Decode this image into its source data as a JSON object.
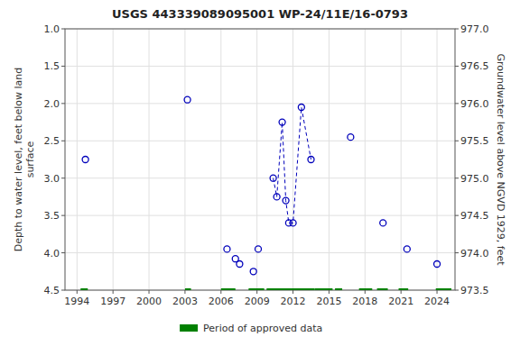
{
  "chart_data": {
    "type": "scatter",
    "title": "USGS 443339089095001 WP-24/11E/16-0793",
    "ylabel": "Depth to water level, feet below land\nsurface",
    "y2label": "Groundwater level above NGVD 1929, feet",
    "xlim": [
      1993.0,
      2025.5
    ],
    "xticks": [
      1994,
      1997,
      2000,
      2003,
      2006,
      2009,
      2012,
      2015,
      2018,
      2021,
      2024
    ],
    "ylim": [
      4.5,
      1.0
    ],
    "yticks": [
      {
        "value": 1.0,
        "label": "1.0"
      },
      1.5,
      {
        "value": 2.0,
        "label": "2.0"
      },
      2.5,
      {
        "value": 3.0,
        "label": "3.0"
      },
      3.5,
      {
        "value": 4.0,
        "label": "4.0"
      },
      4.5
    ],
    "y2lim": [
      973.5,
      977.0
    ],
    "y2ticks": [
      973.5,
      {
        "value": 974.0,
        "label": "974.0"
      },
      974.5,
      {
        "value": 975.0,
        "label": "975.0"
      },
      975.5,
      {
        "value": 976.0,
        "label": "976.0"
      },
      976.5,
      {
        "value": 977.0,
        "label": "977.0"
      }
    ],
    "grid": true,
    "legend": "bottom",
    "series": [
      {
        "type": "scatter",
        "marker": "circle",
        "color": "#0000bb",
        "x": [
          1994.7,
          2003.2,
          2006.5,
          2007.2,
          2007.55,
          2008.7,
          2009.1,
          2010.35,
          2010.65,
          2011.1,
          2011.4,
          2011.65,
          2012.0,
          2012.7,
          2013.5,
          2016.8,
          2019.5,
          2021.5,
          2024.0
        ],
        "values": [
          2.75,
          1.95,
          3.95,
          4.08,
          4.15,
          4.25,
          3.95,
          3.0,
          3.25,
          2.25,
          3.3,
          3.6,
          3.6,
          2.05,
          2.75,
          2.45,
          3.6,
          3.95,
          4.15
        ]
      },
      {
        "type": "line",
        "line_style": "dashed",
        "color": "#0000bb",
        "x": [
          2010.35,
          2010.65,
          2011.1,
          2011.4,
          2011.65,
          2012.0,
          2012.7,
          2013.5
        ],
        "values": [
          3.0,
          3.25,
          2.25,
          3.3,
          3.6,
          3.6,
          2.05,
          2.75
        ]
      },
      {
        "type": "segments",
        "name": "Period of approved data",
        "color": "#008000",
        "y": 4.5,
        "segments": [
          [
            1994.3,
            1994.9
          ],
          [
            2003.0,
            2003.5
          ],
          [
            2006.0,
            2007.2
          ],
          [
            2008.3,
            2009.6
          ],
          [
            2009.8,
            2013.8
          ],
          [
            2013.8,
            2015.3
          ],
          [
            2015.5,
            2016.1
          ],
          [
            2017.5,
            2018.6
          ],
          [
            2019.0,
            2019.9
          ],
          [
            2020.8,
            2021.6
          ],
          [
            2023.9,
            2025.2
          ]
        ]
      }
    ]
  }
}
